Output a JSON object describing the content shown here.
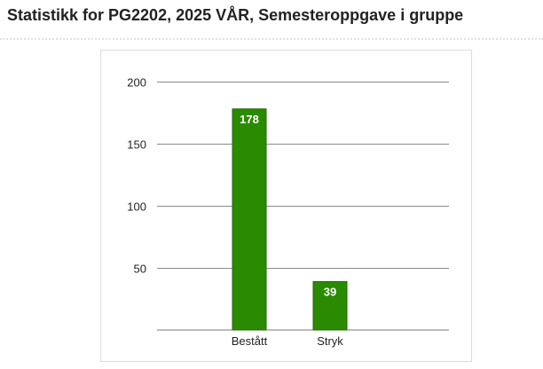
{
  "page": {
    "title": "Statistikk for PG2202, 2025 VÅR, Semesteroppgave i gruppe"
  },
  "chart_data": {
    "type": "bar",
    "categories": [
      "Bestått",
      "Stryk"
    ],
    "values": [
      178,
      39
    ],
    "data_labels": [
      "178",
      "39"
    ],
    "y_ticks": [
      50,
      100,
      150,
      200
    ],
    "y_tick_labels": [
      "50",
      "100",
      "150",
      "200"
    ],
    "ylim": [
      0,
      200
    ],
    "grid": true,
    "legend": "none",
    "bar_color": "#2a8a00",
    "bar_edge_color": "#1f6b00"
  }
}
